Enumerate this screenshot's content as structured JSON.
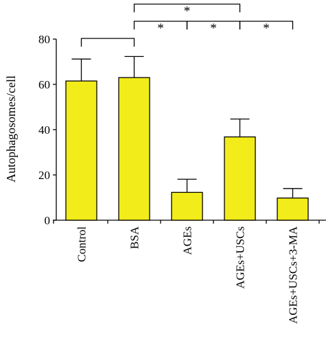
{
  "chart_data": {
    "type": "bar",
    "title": "",
    "xlabel": "",
    "ylabel": "Autophagosomes/cell",
    "ylim": [
      0,
      80
    ],
    "yticks": [
      0,
      20,
      40,
      60,
      80
    ],
    "categories": [
      "Control",
      "BSA",
      "AGEs",
      "AGEs+USCs",
      "AGEs+USCs+3-MA"
    ],
    "values": [
      61.5,
      63,
      12.3,
      36.8,
      9.8
    ],
    "error_upper": [
      71.2,
      72.3,
      18.1,
      44.7,
      14
    ],
    "bar_color": "#f2ec1a",
    "grid": false,
    "legend": "none",
    "significance": [
      {
        "from": 0,
        "to": 1,
        "label": ""
      },
      {
        "from": 1,
        "to": 3,
        "label": "*"
      },
      {
        "from": 1,
        "to": 2,
        "label": "*"
      },
      {
        "from": 2,
        "to": 3,
        "label": "*"
      },
      {
        "from": 3,
        "to": 4,
        "label": "*"
      }
    ]
  }
}
